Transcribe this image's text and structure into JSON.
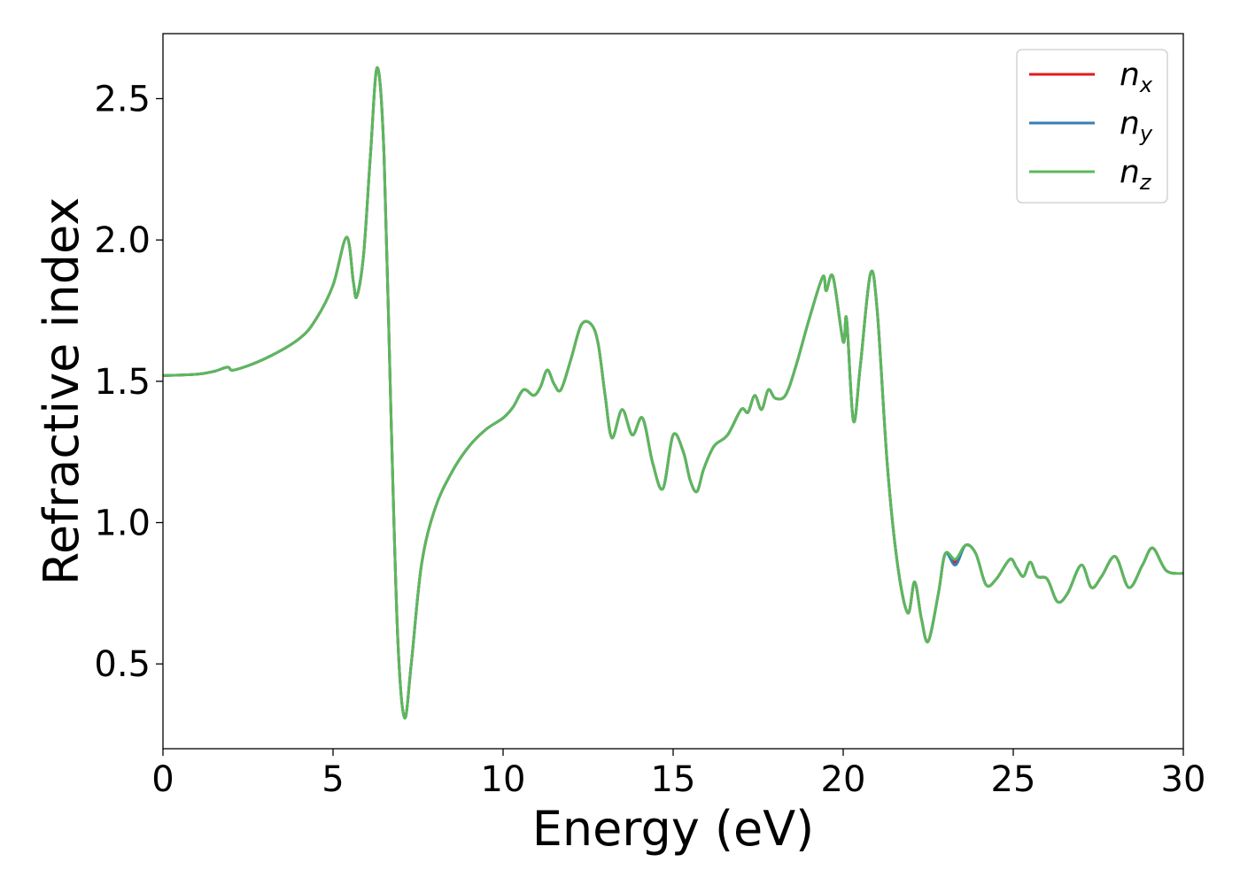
{
  "chart_data": {
    "type": "line",
    "title": "",
    "xlabel": "Energy (eV)",
    "ylabel": "Refractive index",
    "xlim": [
      0,
      30
    ],
    "ylim": [
      0.2,
      2.73
    ],
    "xticks": [
      "0",
      "5",
      "10",
      "15",
      "20",
      "25",
      "30"
    ],
    "xtick_values": [
      0,
      5,
      10,
      15,
      20,
      25,
      30
    ],
    "yticks": [
      "0.5",
      "1.0",
      "1.5",
      "2.0",
      "2.5"
    ],
    "ytick_values": [
      0.5,
      1.0,
      1.5,
      2.0,
      2.5
    ],
    "grid": false,
    "legend_position": "top-right",
    "series": [
      {
        "name": "n_x",
        "base": "n",
        "sub": "x",
        "color": "#e41a1c",
        "points": [
          [
            0,
            1.52
          ],
          [
            1,
            1.525
          ],
          [
            1.5,
            1.535
          ],
          [
            1.9,
            1.55
          ],
          [
            2.1,
            1.54
          ],
          [
            3,
            1.58
          ],
          [
            4,
            1.65
          ],
          [
            4.5,
            1.72
          ],
          [
            5,
            1.84
          ],
          [
            5.4,
            2.01
          ],
          [
            5.6,
            1.85
          ],
          [
            5.7,
            1.8
          ],
          [
            5.9,
            1.95
          ],
          [
            6.1,
            2.3
          ],
          [
            6.3,
            2.61
          ],
          [
            6.5,
            2.3
          ],
          [
            6.7,
            1.4
          ],
          [
            6.9,
            0.6
          ],
          [
            7.1,
            0.31
          ],
          [
            7.3,
            0.5
          ],
          [
            7.6,
            0.85
          ],
          [
            8,
            1.05
          ],
          [
            8.5,
            1.18
          ],
          [
            9,
            1.27
          ],
          [
            9.5,
            1.33
          ],
          [
            10,
            1.37
          ],
          [
            10.3,
            1.41
          ],
          [
            10.6,
            1.47
          ],
          [
            10.9,
            1.45
          ],
          [
            11.1,
            1.48
          ],
          [
            11.3,
            1.54
          ],
          [
            11.5,
            1.49
          ],
          [
            11.7,
            1.47
          ],
          [
            12,
            1.58
          ],
          [
            12.3,
            1.7
          ],
          [
            12.6,
            1.7
          ],
          [
            12.8,
            1.63
          ],
          [
            13,
            1.45
          ],
          [
            13.2,
            1.3
          ],
          [
            13.5,
            1.4
          ],
          [
            13.8,
            1.31
          ],
          [
            14.1,
            1.37
          ],
          [
            14.4,
            1.21
          ],
          [
            14.7,
            1.12
          ],
          [
            15,
            1.31
          ],
          [
            15.3,
            1.25
          ],
          [
            15.5,
            1.15
          ],
          [
            15.7,
            1.11
          ],
          [
            15.9,
            1.19
          ],
          [
            16.2,
            1.27
          ],
          [
            16.6,
            1.31
          ],
          [
            17,
            1.4
          ],
          [
            17.2,
            1.39
          ],
          [
            17.4,
            1.45
          ],
          [
            17.6,
            1.4
          ],
          [
            17.8,
            1.47
          ],
          [
            18,
            1.44
          ],
          [
            18.3,
            1.45
          ],
          [
            18.6,
            1.55
          ],
          [
            19,
            1.72
          ],
          [
            19.4,
            1.87
          ],
          [
            19.5,
            1.82
          ],
          [
            19.7,
            1.87
          ],
          [
            20,
            1.64
          ],
          [
            20.1,
            1.72
          ],
          [
            20.3,
            1.36
          ],
          [
            20.5,
            1.55
          ],
          [
            20.8,
            1.88
          ],
          [
            21,
            1.75
          ],
          [
            21.3,
            1.2
          ],
          [
            21.6,
            0.85
          ],
          [
            21.9,
            0.68
          ],
          [
            22.1,
            0.79
          ],
          [
            22.3,
            0.66
          ],
          [
            22.5,
            0.58
          ],
          [
            22.8,
            0.75
          ],
          [
            23,
            0.89
          ],
          [
            23.3,
            0.86
          ],
          [
            23.6,
            0.92
          ],
          [
            23.9,
            0.89
          ],
          [
            24.2,
            0.78
          ],
          [
            24.5,
            0.8
          ],
          [
            24.9,
            0.87
          ],
          [
            25.1,
            0.84
          ],
          [
            25.3,
            0.81
          ],
          [
            25.5,
            0.86
          ],
          [
            25.7,
            0.81
          ],
          [
            26,
            0.8
          ],
          [
            26.3,
            0.72
          ],
          [
            26.6,
            0.75
          ],
          [
            27,
            0.85
          ],
          [
            27.3,
            0.77
          ],
          [
            27.6,
            0.81
          ],
          [
            28,
            0.88
          ],
          [
            28.4,
            0.77
          ],
          [
            28.8,
            0.85
          ],
          [
            29.1,
            0.91
          ],
          [
            29.5,
            0.83
          ],
          [
            30,
            0.82
          ]
        ]
      },
      {
        "name": "n_y",
        "base": "n",
        "sub": "y",
        "color": "#377eb8",
        "points": [
          [
            0,
            1.52
          ],
          [
            1,
            1.525
          ],
          [
            1.5,
            1.535
          ],
          [
            1.9,
            1.55
          ],
          [
            2.1,
            1.54
          ],
          [
            3,
            1.58
          ],
          [
            4,
            1.65
          ],
          [
            4.5,
            1.72
          ],
          [
            5,
            1.84
          ],
          [
            5.4,
            2.01
          ],
          [
            5.6,
            1.85
          ],
          [
            5.7,
            1.8
          ],
          [
            5.9,
            1.95
          ],
          [
            6.1,
            2.3
          ],
          [
            6.3,
            2.61
          ],
          [
            6.5,
            2.3
          ],
          [
            6.7,
            1.4
          ],
          [
            6.9,
            0.6
          ],
          [
            7.1,
            0.31
          ],
          [
            7.3,
            0.5
          ],
          [
            7.6,
            0.85
          ],
          [
            8,
            1.05
          ],
          [
            8.5,
            1.18
          ],
          [
            9,
            1.27
          ],
          [
            9.5,
            1.33
          ],
          [
            10,
            1.37
          ],
          [
            10.3,
            1.41
          ],
          [
            10.6,
            1.47
          ],
          [
            10.9,
            1.45
          ],
          [
            11.1,
            1.48
          ],
          [
            11.3,
            1.54
          ],
          [
            11.5,
            1.49
          ],
          [
            11.7,
            1.47
          ],
          [
            12,
            1.58
          ],
          [
            12.3,
            1.7
          ],
          [
            12.6,
            1.7
          ],
          [
            12.8,
            1.63
          ],
          [
            13,
            1.45
          ],
          [
            13.2,
            1.3
          ],
          [
            13.5,
            1.4
          ],
          [
            13.8,
            1.31
          ],
          [
            14.1,
            1.37
          ],
          [
            14.4,
            1.21
          ],
          [
            14.7,
            1.12
          ],
          [
            15,
            1.31
          ],
          [
            15.3,
            1.25
          ],
          [
            15.5,
            1.15
          ],
          [
            15.7,
            1.11
          ],
          [
            15.9,
            1.19
          ],
          [
            16.2,
            1.27
          ],
          [
            16.6,
            1.31
          ],
          [
            17,
            1.4
          ],
          [
            17.2,
            1.39
          ],
          [
            17.4,
            1.45
          ],
          [
            17.6,
            1.4
          ],
          [
            17.8,
            1.47
          ],
          [
            18,
            1.44
          ],
          [
            18.3,
            1.45
          ],
          [
            18.6,
            1.55
          ],
          [
            19,
            1.72
          ],
          [
            19.4,
            1.87
          ],
          [
            19.5,
            1.82
          ],
          [
            19.7,
            1.87
          ],
          [
            20,
            1.64
          ],
          [
            20.1,
            1.72
          ],
          [
            20.3,
            1.36
          ],
          [
            20.5,
            1.55
          ],
          [
            20.8,
            1.88
          ],
          [
            21,
            1.75
          ],
          [
            21.3,
            1.2
          ],
          [
            21.6,
            0.85
          ],
          [
            21.9,
            0.68
          ],
          [
            22.1,
            0.79
          ],
          [
            22.3,
            0.66
          ],
          [
            22.5,
            0.58
          ],
          [
            22.8,
            0.75
          ],
          [
            23,
            0.89
          ],
          [
            23.3,
            0.85
          ],
          [
            23.6,
            0.92
          ],
          [
            23.9,
            0.89
          ],
          [
            24.2,
            0.78
          ],
          [
            24.5,
            0.8
          ],
          [
            24.9,
            0.87
          ],
          [
            25.1,
            0.84
          ],
          [
            25.3,
            0.81
          ],
          [
            25.5,
            0.86
          ],
          [
            25.7,
            0.81
          ],
          [
            26,
            0.8
          ],
          [
            26.3,
            0.72
          ],
          [
            26.6,
            0.75
          ],
          [
            27,
            0.85
          ],
          [
            27.3,
            0.77
          ],
          [
            27.6,
            0.81
          ],
          [
            28,
            0.88
          ],
          [
            28.4,
            0.77
          ],
          [
            28.8,
            0.85
          ],
          [
            29.1,
            0.91
          ],
          [
            29.5,
            0.83
          ],
          [
            30,
            0.82
          ]
        ]
      },
      {
        "name": "n_z",
        "base": "n",
        "sub": "z",
        "color": "#5cb85c",
        "points": [
          [
            0,
            1.52
          ],
          [
            1,
            1.525
          ],
          [
            1.5,
            1.535
          ],
          [
            1.9,
            1.55
          ],
          [
            2.1,
            1.54
          ],
          [
            3,
            1.58
          ],
          [
            4,
            1.65
          ],
          [
            4.5,
            1.72
          ],
          [
            5,
            1.84
          ],
          [
            5.4,
            2.01
          ],
          [
            5.6,
            1.85
          ],
          [
            5.7,
            1.8
          ],
          [
            5.9,
            1.95
          ],
          [
            6.1,
            2.3
          ],
          [
            6.3,
            2.61
          ],
          [
            6.5,
            2.3
          ],
          [
            6.7,
            1.4
          ],
          [
            6.9,
            0.6
          ],
          [
            7.1,
            0.31
          ],
          [
            7.3,
            0.5
          ],
          [
            7.6,
            0.85
          ],
          [
            8,
            1.05
          ],
          [
            8.5,
            1.18
          ],
          [
            9,
            1.27
          ],
          [
            9.5,
            1.33
          ],
          [
            10,
            1.37
          ],
          [
            10.3,
            1.41
          ],
          [
            10.6,
            1.47
          ],
          [
            10.9,
            1.45
          ],
          [
            11.1,
            1.48
          ],
          [
            11.3,
            1.54
          ],
          [
            11.5,
            1.49
          ],
          [
            11.7,
            1.47
          ],
          [
            12,
            1.58
          ],
          [
            12.3,
            1.7
          ],
          [
            12.6,
            1.7
          ],
          [
            12.8,
            1.63
          ],
          [
            13,
            1.45
          ],
          [
            13.2,
            1.3
          ],
          [
            13.5,
            1.4
          ],
          [
            13.8,
            1.31
          ],
          [
            14.1,
            1.37
          ],
          [
            14.4,
            1.21
          ],
          [
            14.7,
            1.12
          ],
          [
            15,
            1.31
          ],
          [
            15.3,
            1.25
          ],
          [
            15.5,
            1.15
          ],
          [
            15.7,
            1.11
          ],
          [
            15.9,
            1.19
          ],
          [
            16.2,
            1.27
          ],
          [
            16.6,
            1.31
          ],
          [
            17,
            1.4
          ],
          [
            17.2,
            1.39
          ],
          [
            17.4,
            1.45
          ],
          [
            17.6,
            1.4
          ],
          [
            17.8,
            1.47
          ],
          [
            18,
            1.44
          ],
          [
            18.3,
            1.45
          ],
          [
            18.6,
            1.55
          ],
          [
            19,
            1.72
          ],
          [
            19.4,
            1.87
          ],
          [
            19.5,
            1.82
          ],
          [
            19.7,
            1.87
          ],
          [
            20,
            1.64
          ],
          [
            20.1,
            1.72
          ],
          [
            20.3,
            1.36
          ],
          [
            20.5,
            1.55
          ],
          [
            20.8,
            1.88
          ],
          [
            21,
            1.75
          ],
          [
            21.3,
            1.2
          ],
          [
            21.6,
            0.85
          ],
          [
            21.9,
            0.68
          ],
          [
            22.1,
            0.79
          ],
          [
            22.3,
            0.66
          ],
          [
            22.5,
            0.58
          ],
          [
            22.8,
            0.75
          ],
          [
            23,
            0.89
          ],
          [
            23.3,
            0.87
          ],
          [
            23.6,
            0.92
          ],
          [
            23.9,
            0.89
          ],
          [
            24.2,
            0.78
          ],
          [
            24.5,
            0.8
          ],
          [
            24.9,
            0.87
          ],
          [
            25.1,
            0.84
          ],
          [
            25.3,
            0.81
          ],
          [
            25.5,
            0.86
          ],
          [
            25.7,
            0.81
          ],
          [
            26,
            0.8
          ],
          [
            26.3,
            0.72
          ],
          [
            26.6,
            0.75
          ],
          [
            27,
            0.85
          ],
          [
            27.3,
            0.77
          ],
          [
            27.6,
            0.81
          ],
          [
            28,
            0.88
          ],
          [
            28.4,
            0.77
          ],
          [
            28.8,
            0.85
          ],
          [
            29.1,
            0.91
          ],
          [
            29.5,
            0.83
          ],
          [
            30,
            0.82
          ]
        ]
      }
    ]
  }
}
